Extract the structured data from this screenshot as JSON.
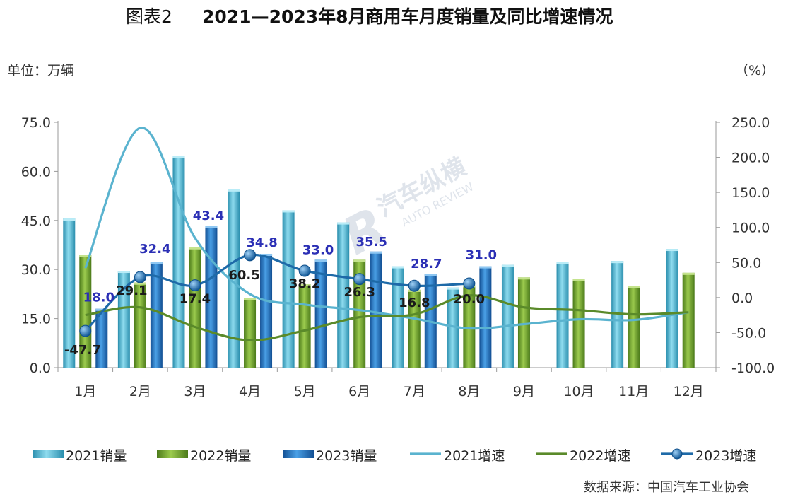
{
  "title_prefix": "图表2",
  "title_main": "2021—2023年8月商用车月度销量及同比增速情况",
  "unit_left": "单位：万辆",
  "unit_right": "（%）",
  "source": "数据来源：中国汽车工业协会",
  "watermark": {
    "cn": "汽车纵横",
    "en": "AUTO REVIEW"
  },
  "colors": {
    "bar2021": "#4fb8d4",
    "bar2022": "#6a9a2a",
    "bar2023": "#1f72c0",
    "line2021": "#5ab3cf",
    "line2022": "#5a8a2a",
    "line2023": "#1e6aa8",
    "label2023": "#2b2fb5"
  },
  "chart_data": {
    "type": "bar",
    "categories": [
      "1月",
      "2月",
      "3月",
      "4月",
      "5月",
      "6月",
      "7月",
      "8月",
      "9月",
      "10月",
      "11月",
      "12月"
    ],
    "y_left": {
      "min": 0,
      "max": 75,
      "ticks": [
        "0.0",
        "15.0",
        "30.0",
        "45.0",
        "60.0",
        "75.0"
      ]
    },
    "y_right": {
      "min": -100,
      "max": 250,
      "ticks": [
        "-100.0",
        "-50.0",
        "0.0",
        "50.0",
        "100.0",
        "150.0",
        "200.0",
        "250.0"
      ]
    },
    "bar_series": [
      {
        "name": "2021销量",
        "values": [
          45.6,
          29.6,
          64.8,
          54.5,
          48.1,
          44.4,
          31.0,
          24.5,
          31.4,
          32.3,
          32.6,
          36.3
        ]
      },
      {
        "name": "2022销量",
        "values": [
          34.4,
          26.0,
          36.8,
          21.2,
          25.5,
          33.0,
          23.8,
          25.2,
          27.6,
          27.1,
          25.0,
          29.0
        ]
      },
      {
        "name": "2023销量",
        "values": [
          18.0,
          32.4,
          43.4,
          34.8,
          33.0,
          35.5,
          28.7,
          31.0
        ]
      }
    ],
    "line_series": [
      {
        "name": "2021增速",
        "values": [
          42,
          242,
          85,
          5,
          -10,
          -18,
          -30,
          -44,
          -38,
          -31,
          -32,
          -21
        ]
      },
      {
        "name": "2022增速",
        "values": [
          -25,
          -14,
          -42,
          -61,
          -47,
          -28,
          -24,
          3,
          -14,
          -18,
          -24,
          -21
        ]
      },
      {
        "name": "2023增速",
        "values": [
          -47.7,
          29.1,
          17.4,
          60.5,
          38.2,
          26.3,
          16.8,
          20.0
        ]
      }
    ],
    "labels_2023_sales": [
      "18.0",
      "32.4",
      "43.4",
      "34.8",
      "33.0",
      "35.5",
      "28.7",
      "31.0"
    ],
    "labels_2023_growth": [
      "-47.7",
      "29.1",
      "17.4",
      "60.5",
      "38.2",
      "26.3",
      "16.8",
      "20.0"
    ],
    "legend_position": "bottom"
  }
}
